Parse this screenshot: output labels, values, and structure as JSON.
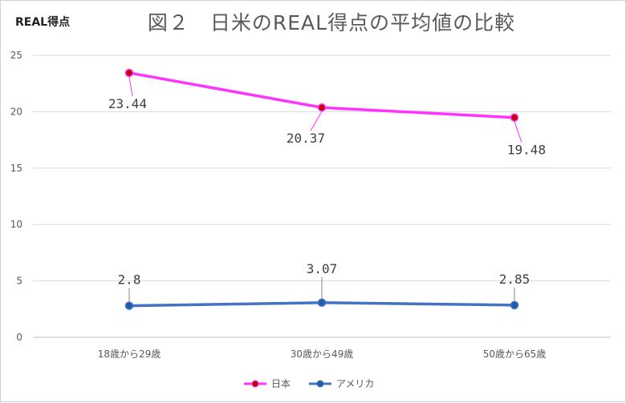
{
  "chart_data": {
    "type": "line",
    "title": "図２　日米のREAL得点の平均値の比較",
    "xlabel": "",
    "ylabel": "REAL得点",
    "ylim": [
      0,
      25
    ],
    "yticks": [
      "0",
      "5",
      "10",
      "15",
      "20",
      "25"
    ],
    "grid": true,
    "legend": "bottom",
    "categories": [
      "18歳から29歳",
      "30歳から49歳",
      "50歳から65歳"
    ],
    "series": [
      {
        "name": "日本",
        "values": [
          23.44,
          20.37,
          19.48
        ],
        "labels": [
          "23.44",
          "20.37",
          "19.48"
        ],
        "color": "#ff33ff",
        "marker_color": "#c00000"
      },
      {
        "name": "アメリカ",
        "values": [
          2.8,
          3.07,
          2.85
        ],
        "labels": [
          "2.8",
          "3.07",
          "2.85"
        ],
        "color": "#4472c4",
        "marker_color": "#1f5ea8"
      }
    ]
  }
}
